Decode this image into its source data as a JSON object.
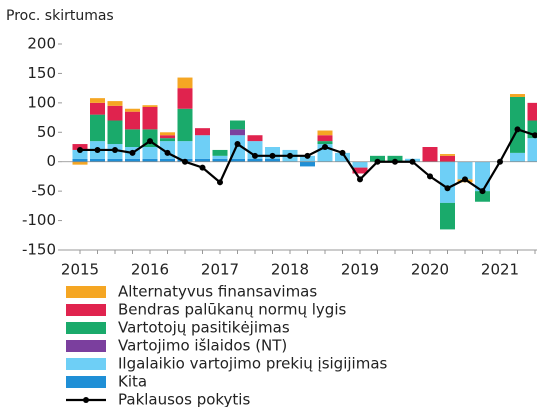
{
  "chart_data": {
    "type": "bar",
    "axis_label": "Proc. skirtumas",
    "categories": [
      "2015",
      null,
      null,
      null,
      "2016",
      null,
      null,
      null,
      "2017",
      null,
      null,
      null,
      "2018",
      null,
      null,
      null,
      "2019",
      null,
      null,
      null,
      "2020",
      null,
      null,
      null,
      "2021",
      null,
      null
    ],
    "ylim": [
      -150,
      200
    ],
    "yticks": [
      -150,
      -100,
      -50,
      0,
      50,
      100,
      150,
      200
    ],
    "stacked": true,
    "grid": false,
    "series": [
      {
        "name": "Alternatyvus finansavimas",
        "color": "#f5a623",
        "values": [
          -5,
          8,
          8,
          5,
          3,
          5,
          18,
          0,
          0,
          0,
          0,
          0,
          0,
          0,
          8,
          0,
          0,
          0,
          0,
          0,
          0,
          3,
          -5,
          0,
          0,
          5,
          0
        ]
      },
      {
        "name": "Bendras palūkanų normų lygis",
        "color": "#e0234e",
        "values": [
          10,
          20,
          25,
          30,
          38,
          5,
          35,
          12,
          0,
          0,
          10,
          0,
          0,
          0,
          10,
          0,
          -10,
          0,
          0,
          0,
          25,
          10,
          0,
          0,
          0,
          0,
          30
        ]
      },
      {
        "name": "Vartotojų pasitikėjimas",
        "color": "#1aaa6b",
        "values": [
          0,
          45,
          40,
          30,
          30,
          5,
          55,
          0,
          10,
          15,
          0,
          0,
          0,
          0,
          5,
          0,
          0,
          10,
          10,
          0,
          0,
          -45,
          0,
          -18,
          0,
          95,
          30
        ]
      },
      {
        "name": "Vartojimo išlaidos (NT)",
        "color": "#7b3f9e",
        "values": [
          0,
          0,
          0,
          0,
          0,
          0,
          0,
          0,
          0,
          10,
          0,
          0,
          0,
          0,
          0,
          0,
          0,
          0,
          0,
          0,
          0,
          0,
          0,
          0,
          0,
          0,
          0
        ]
      },
      {
        "name": "Ilgalaikio vartojimo prekių įsigijimas",
        "color": "#6ecff6",
        "values": [
          15,
          30,
          25,
          20,
          20,
          30,
          30,
          40,
          5,
          40,
          30,
          20,
          20,
          10,
          30,
          15,
          -10,
          0,
          0,
          5,
          0,
          -70,
          -30,
          -50,
          0,
          15,
          40
        ]
      },
      {
        "name": "Kita",
        "color": "#1f8fd6",
        "values": [
          5,
          5,
          5,
          5,
          5,
          5,
          5,
          5,
          5,
          5,
          5,
          5,
          0,
          -8,
          0,
          0,
          0,
          0,
          0,
          0,
          0,
          0,
          0,
          0,
          0,
          0,
          0
        ]
      },
      {
        "name": "Paklausos pokytis",
        "type": "line",
        "color": "#000000",
        "values": [
          20,
          20,
          20,
          15,
          35,
          15,
          0,
          -10,
          -35,
          30,
          10,
          10,
          10,
          10,
          25,
          15,
          -30,
          0,
          0,
          0,
          -25,
          -45,
          -30,
          -50,
          0,
          55,
          45
        ]
      }
    ]
  }
}
